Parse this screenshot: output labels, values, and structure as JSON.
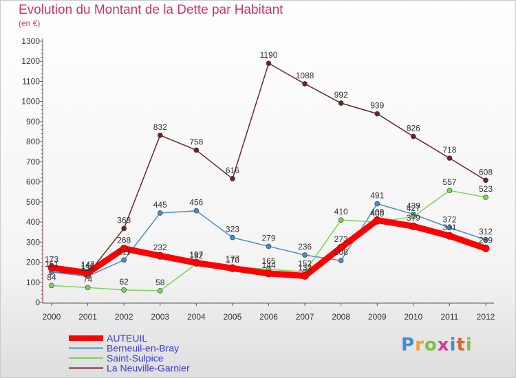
{
  "header": {
    "title": "Evolution du Montant de la Dette par Habitant",
    "subtitle": "(en €)"
  },
  "brand": {
    "text": "Proxiti",
    "colors": [
      "#3a8fd6",
      "#f2a12b",
      "#7cc242",
      "#d53a8a",
      "#3a8fd6",
      "#e0632c",
      "#7cc242"
    ]
  },
  "chart_data": {
    "type": "line",
    "x": [
      "2000",
      "2001",
      "2002",
      "2003",
      "2004",
      "2005",
      "2006",
      "2007",
      "2008",
      "2009",
      "2010",
      "2011",
      "2012"
    ],
    "ylim": [
      0,
      1300
    ],
    "yticks": [
      0,
      100,
      200,
      300,
      400,
      500,
      600,
      700,
      800,
      900,
      1000,
      1100,
      1200,
      1300
    ],
    "grid": false,
    "legend_position": "bottom-left",
    "series": [
      {
        "name": "AUTEUIL",
        "color": "#ff0000",
        "emphasis": true,
        "values": [
          173,
          147,
          268,
          232,
          197,
          170,
          144,
          132,
          273,
          409,
          379,
          331,
          269
        ]
      },
      {
        "name": "Berneuil-en-Bray",
        "color": "#4d8cc3",
        "values": [
          151,
          130,
          211,
          445,
          456,
          323,
          279,
          236,
          208,
          491,
          439,
          372,
          312
        ]
      },
      {
        "name": "Saint-Sulpice",
        "color": "#7fd15c",
        "values": [
          84,
          74,
          62,
          58,
          192,
          177,
          165,
          152,
          410,
          400,
          427,
          557,
          523
        ]
      },
      {
        "name": "La Neuville-Garnier",
        "color": "#6b2525",
        "values": [
          151,
          140,
          368,
          832,
          758,
          616,
          1190,
          1088,
          992,
          939,
          826,
          718,
          608
        ]
      }
    ]
  }
}
